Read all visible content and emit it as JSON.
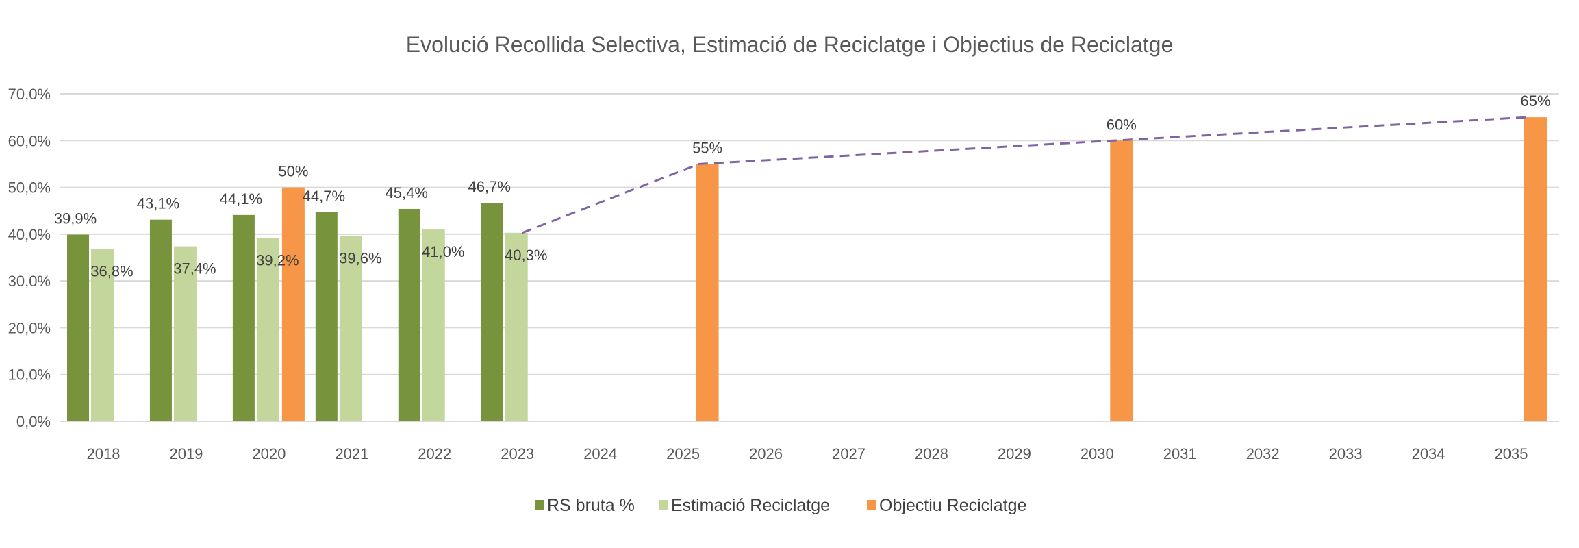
{
  "chart_data": {
    "type": "bar",
    "title": "Evolució Recollida Selectiva, Estimació de Reciclatge i Objectius de Reciclatge",
    "xlabel": "",
    "ylabel": "",
    "ylim": [
      0,
      70
    ],
    "grid": true,
    "legend_position": "bottom",
    "y_ticks": [
      "0,0%",
      "10,0%",
      "20,0%",
      "30,0%",
      "40,0%",
      "50,0%",
      "60,0%",
      "70,0%"
    ],
    "categories": [
      "2018",
      "2019",
      "2020",
      "2021",
      "2022",
      "2023",
      "2024",
      "2025",
      "2026",
      "2027",
      "2028",
      "2029",
      "2030",
      "2031",
      "2032",
      "2033",
      "2034",
      "2035"
    ],
    "series": [
      {
        "name": "RS bruta %",
        "color": "#77933C",
        "values": [
          39.9,
          43.1,
          44.1,
          44.7,
          45.4,
          46.7,
          null,
          null,
          null,
          null,
          null,
          null,
          null,
          null,
          null,
          null,
          null,
          null
        ],
        "labels": [
          "39,9%",
          "43,1%",
          "44,1%",
          "44,7%",
          "45,4%",
          "46,7%",
          null,
          null,
          null,
          null,
          null,
          null,
          null,
          null,
          null,
          null,
          null,
          null
        ]
      },
      {
        "name": "Estimació Reciclatge",
        "color": "#C3D69B",
        "values": [
          36.8,
          37.4,
          39.2,
          39.6,
          41.0,
          40.3,
          null,
          null,
          null,
          null,
          null,
          null,
          null,
          null,
          null,
          null,
          null,
          null
        ],
        "labels": [
          "36,8%",
          "37,4%",
          "39,2%",
          "39,6%",
          "41,0%",
          "40,3%",
          null,
          null,
          null,
          null,
          null,
          null,
          null,
          null,
          null,
          null,
          null,
          null
        ]
      },
      {
        "name": "Objectiu Reciclatge",
        "color": "#F79646",
        "values": [
          null,
          null,
          50,
          null,
          null,
          null,
          null,
          55,
          null,
          null,
          null,
          null,
          60,
          null,
          null,
          null,
          null,
          65
        ],
        "labels": [
          null,
          null,
          "50%",
          null,
          null,
          null,
          null,
          "55%",
          null,
          null,
          null,
          null,
          "60%",
          null,
          null,
          null,
          null,
          "65%"
        ]
      }
    ],
    "trend_line": {
      "style": "dashed",
      "color": "#8064A2",
      "points": [
        {
          "x": "2023",
          "y": 40.3
        },
        {
          "x": "2025",
          "y": 55
        },
        {
          "x": "2030",
          "y": 60
        },
        {
          "x": "2035",
          "y": 65
        }
      ]
    }
  }
}
